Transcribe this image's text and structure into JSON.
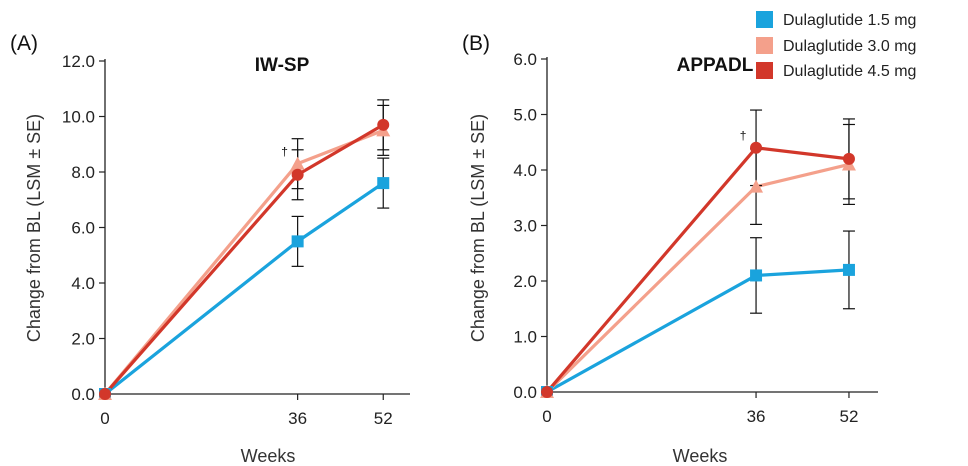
{
  "chart_data": [
    {
      "type": "line",
      "panel_label": "(A)",
      "title": "IW-SP",
      "xlabel": "Weeks",
      "ylabel": "Change from BL (LSM ± SE)",
      "x": [
        0,
        36,
        52
      ],
      "x_tick_labels": [
        "0",
        "36",
        "52"
      ],
      "ylim": [
        0,
        12
      ],
      "y_ticks": [
        0,
        2,
        4,
        6,
        8,
        10,
        12
      ],
      "y_tick_labels": [
        "0.0",
        "2.0",
        "4.0",
        "6.0",
        "8.0",
        "10.0",
        "12.0"
      ],
      "annotations": [
        {
          "text": "†",
          "x": 36,
          "y": 8.6
        }
      ],
      "series": [
        {
          "name": "Dulaglutide 1.5 mg",
          "color": "#1aa3dd",
          "marker": "square",
          "values": [
            0,
            5.5,
            7.6
          ],
          "se": [
            0,
            0.9,
            0.9
          ]
        },
        {
          "name": "Dulaglutide 3.0 mg",
          "color": "#f4a08b",
          "marker": "triangle",
          "values": [
            0,
            8.3,
            9.5
          ],
          "se": [
            0,
            0.9,
            0.9
          ]
        },
        {
          "name": "Dulaglutide 4.5 mg",
          "color": "#d2372a",
          "marker": "circle",
          "values": [
            0,
            7.9,
            9.7
          ],
          "se": [
            0,
            0.9,
            0.9
          ]
        }
      ]
    },
    {
      "type": "line",
      "panel_label": "(B)",
      "title": "APPADL",
      "xlabel": "Weeks",
      "ylabel": "Change from BL (LSM ± SE)",
      "x": [
        0,
        36,
        52
      ],
      "x_tick_labels": [
        "0",
        "36",
        "52"
      ],
      "ylim": [
        0,
        6
      ],
      "y_ticks": [
        0,
        1,
        2,
        3,
        4,
        5,
        6
      ],
      "y_tick_labels": [
        "0.0",
        "1.0",
        "2.0",
        "3.0",
        "4.0",
        "5.0",
        "6.0"
      ],
      "annotations": [
        {
          "text": "†",
          "x": 36,
          "y": 4.55
        }
      ],
      "series": [
        {
          "name": "Dulaglutide 1.5 mg",
          "color": "#1aa3dd",
          "marker": "square",
          "values": [
            0,
            2.1,
            2.2
          ],
          "se": [
            0,
            0.68,
            0.7
          ]
        },
        {
          "name": "Dulaglutide 3.0 mg",
          "color": "#f4a08b",
          "marker": "triangle",
          "values": [
            0,
            3.7,
            4.1
          ],
          "se": [
            0,
            0.68,
            0.72
          ]
        },
        {
          "name": "Dulaglutide 4.5 mg",
          "color": "#d2372a",
          "marker": "circle",
          "values": [
            0,
            4.4,
            4.2
          ],
          "se": [
            0,
            0.68,
            0.72
          ]
        }
      ]
    }
  ],
  "legend": {
    "placement": "top-right",
    "items": [
      {
        "label": "Dulaglutide 1.5 mg",
        "color": "#1aa3dd"
      },
      {
        "label": "Dulaglutide 3.0 mg",
        "color": "#f4a08b"
      },
      {
        "label": "Dulaglutide 4.5 mg",
        "color": "#d2372a"
      }
    ]
  }
}
